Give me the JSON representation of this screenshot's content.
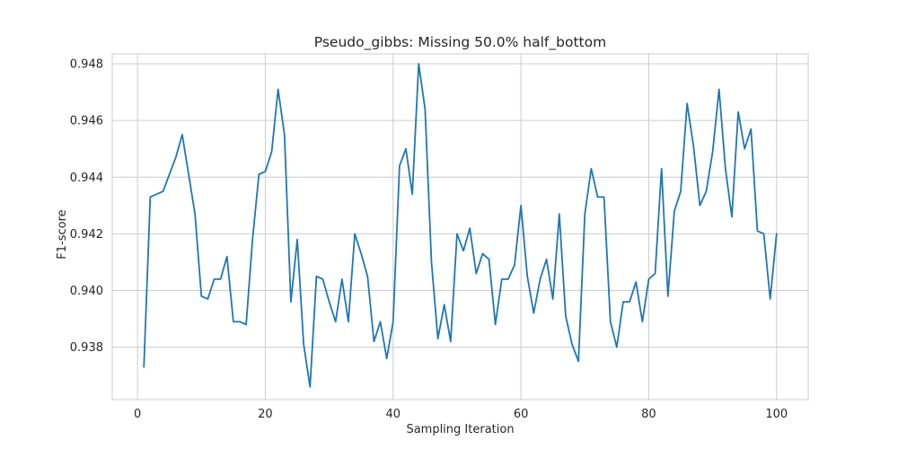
{
  "chart_data": {
    "type": "line",
    "title": "Pseudo_gibbs: Missing 50.0% half_bottom",
    "xlabel": "Sampling Iteration",
    "ylabel": "F1-score",
    "xlim": [
      -3.95,
      104.95
    ],
    "ylim": [
      0.93615,
      0.94835
    ],
    "xticks": [
      0,
      20,
      40,
      60,
      80,
      100
    ],
    "xtick_labels": [
      "0",
      "20",
      "40",
      "60",
      "80",
      "100"
    ],
    "yticks": [
      0.938,
      0.94,
      0.942,
      0.944,
      0.946,
      0.948
    ],
    "ytick_labels": [
      "0.938",
      "0.940",
      "0.942",
      "0.944",
      "0.946",
      "0.948"
    ],
    "grid": true,
    "series": [
      {
        "color": "#1f77b4",
        "x": [
          1,
          2,
          3,
          4,
          5,
          6,
          7,
          8,
          9,
          10,
          11,
          12,
          13,
          14,
          15,
          16,
          17,
          18,
          19,
          20,
          21,
          22,
          23,
          24,
          25,
          26,
          27,
          28,
          29,
          30,
          31,
          32,
          33,
          34,
          35,
          36,
          37,
          38,
          39,
          40,
          41,
          42,
          43,
          44,
          45,
          46,
          47,
          48,
          49,
          50,
          51,
          52,
          53,
          54,
          55,
          56,
          57,
          58,
          59,
          60,
          61,
          62,
          63,
          64,
          65,
          66,
          67,
          68,
          69,
          70,
          71,
          72,
          73,
          74,
          75,
          76,
          77,
          78,
          79,
          80,
          81,
          82,
          83,
          84,
          85,
          86,
          87,
          88,
          89,
          90,
          91,
          92,
          93,
          94,
          95,
          96,
          97,
          98,
          99,
          100
        ],
        "y": [
          0.9373,
          0.9433,
          0.9434,
          0.9435,
          0.9441,
          0.9447,
          0.9455,
          0.9441,
          0.9427,
          0.9398,
          0.9397,
          0.9404,
          0.9404,
          0.9412,
          0.9389,
          0.9389,
          0.9388,
          0.9418,
          0.9441,
          0.9442,
          0.9449,
          0.9471,
          0.9455,
          0.9396,
          0.9418,
          0.9381,
          0.9366,
          0.9405,
          0.9404,
          0.9396,
          0.9389,
          0.9404,
          0.9389,
          0.942,
          0.9413,
          0.9405,
          0.9382,
          0.9389,
          0.9376,
          0.9389,
          0.9444,
          0.945,
          0.9434,
          0.948,
          0.9464,
          0.941,
          0.9383,
          0.9395,
          0.9382,
          0.942,
          0.9414,
          0.9422,
          0.9406,
          0.9413,
          0.9411,
          0.9388,
          0.9404,
          0.9404,
          0.9409,
          0.943,
          0.9405,
          0.9392,
          0.9404,
          0.9411,
          0.9397,
          0.9427,
          0.9391,
          0.9381,
          0.9375,
          0.9427,
          0.9443,
          0.9433,
          0.9433,
          0.9389,
          0.938,
          0.9396,
          0.9396,
          0.9403,
          0.9389,
          0.9404,
          0.9406,
          0.9443,
          0.9398,
          0.9428,
          0.9435,
          0.9466,
          0.9451,
          0.943,
          0.9435,
          0.9449,
          0.9471,
          0.9443,
          0.9426,
          0.9463,
          0.945,
          0.9457,
          0.9421,
          0.942,
          0.9397,
          0.942
        ]
      }
    ]
  }
}
